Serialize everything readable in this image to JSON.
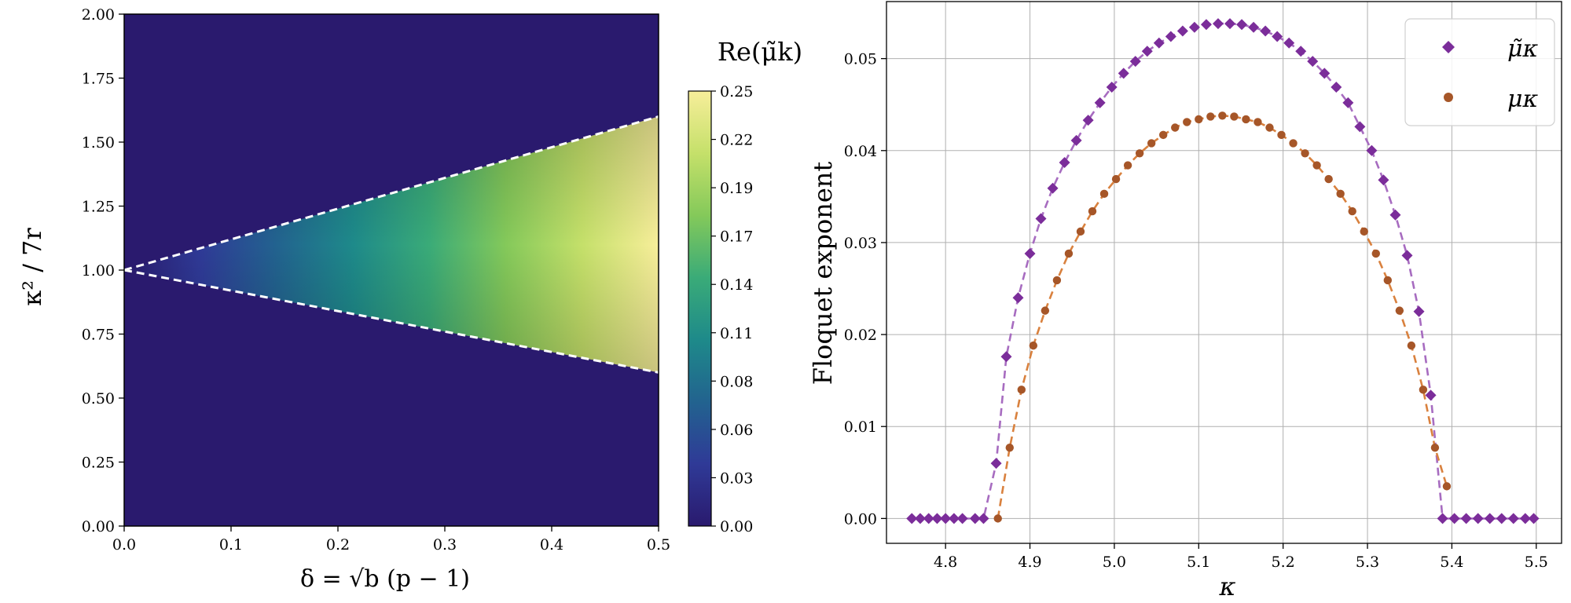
{
  "chart_data": [
    {
      "type": "heatmap",
      "title": "",
      "xlabel": "δ = √b (p − 1)",
      "ylabel": "κ² / 7r",
      "xlim": [
        0.0,
        0.5
      ],
      "ylim": [
        0.0,
        2.0
      ],
      "x_ticks": [
        "0.0",
        "0.1",
        "0.2",
        "0.3",
        "0.4",
        "0.5"
      ],
      "y_ticks": [
        "0.00",
        "0.25",
        "0.50",
        "0.75",
        "1.00",
        "1.25",
        "1.50",
        "1.75",
        "2.00"
      ],
      "boundary": {
        "description": "unstable tongue bounded by white dashed lines",
        "apex": [
          0.0,
          1.0
        ],
        "upper_at_xmax": 1.6,
        "lower_at_xmax": 0.6
      },
      "colorbar": {
        "label": "Re(μ̃k)",
        "range": [
          0.0,
          0.25
        ],
        "ticks": [
          "0.00",
          "0.03",
          "0.06",
          "0.08",
          "0.11",
          "0.14",
          "0.17",
          "0.19",
          "0.22",
          "0.25"
        ],
        "colors": [
          "#2a1a6e",
          "#2f3a97",
          "#22638f",
          "#1e8a8a",
          "#3aab78",
          "#84c95a",
          "#c5e06a",
          "#f7ee9a"
        ]
      },
      "background_color": "#2a1a6e"
    },
    {
      "type": "scatter",
      "xlabel": "κ",
      "ylabel": "Floquet exponent",
      "xlim": [
        4.73,
        5.53
      ],
      "ylim": [
        -0.0027,
        0.0562
      ],
      "x_ticks": [
        "4.8",
        "4.9",
        "5.0",
        "5.1",
        "5.2",
        "5.3",
        "5.4",
        "5.5"
      ],
      "y_ticks": [
        "0.00",
        "0.01",
        "0.02",
        "0.03",
        "0.04",
        "0.05"
      ],
      "grid": true,
      "legend": "top-right",
      "series": [
        {
          "name": "μ̃κ",
          "marker": "diamond",
          "color": "#7b2d9a",
          "fit_color": "#a76cc0",
          "x": [
            4.76,
            4.77,
            4.78,
            4.79,
            4.8,
            4.81,
            4.82,
            4.835,
            4.845,
            4.86,
            4.872,
            4.886,
            4.9,
            4.913,
            4.927,
            4.941,
            4.955,
            4.969,
            4.983,
            4.997,
            5.011,
            5.025,
            5.039,
            5.053,
            5.067,
            5.081,
            5.095,
            5.109,
            5.123,
            5.137,
            5.151,
            5.165,
            5.179,
            5.193,
            5.207,
            5.221,
            5.235,
            5.249,
            5.263,
            5.277,
            5.291,
            5.305,
            5.319,
            5.333,
            5.347,
            5.361,
            5.375,
            5.389,
            5.403,
            5.417,
            5.431,
            5.445,
            5.459,
            5.473,
            5.487,
            5.497
          ],
          "y": [
            0,
            0,
            0,
            0,
            0,
            0,
            0,
            0,
            0,
            0.006,
            0.0176,
            0.024,
            0.0288,
            0.0326,
            0.0359,
            0.0387,
            0.0411,
            0.0433,
            0.0452,
            0.0469,
            0.0484,
            0.0497,
            0.0508,
            0.0517,
            0.0524,
            0.053,
            0.0534,
            0.0537,
            0.0538,
            0.0538,
            0.0537,
            0.0534,
            0.053,
            0.0524,
            0.0517,
            0.0508,
            0.0497,
            0.0484,
            0.0469,
            0.0452,
            0.0426,
            0.04,
            0.0368,
            0.033,
            0.0286,
            0.0225,
            0.0134,
            0,
            0,
            0,
            0,
            0,
            0,
            0,
            0,
            0
          ]
        },
        {
          "name": "μκ",
          "marker": "circle",
          "color": "#a65628",
          "fit_color": "#d9813e",
          "x": [
            4.862,
            4.876,
            4.89,
            4.904,
            4.918,
            4.932,
            4.946,
            4.96,
            4.974,
            4.988,
            5.002,
            5.016,
            5.03,
            5.044,
            5.058,
            5.072,
            5.086,
            5.1,
            5.114,
            5.128,
            5.142,
            5.156,
            5.17,
            5.184,
            5.198,
            5.212,
            5.226,
            5.24,
            5.254,
            5.268,
            5.282,
            5.296,
            5.31,
            5.324,
            5.338,
            5.352,
            5.366,
            5.38,
            5.394
          ],
          "y": [
            0,
            0.0077,
            0.014,
            0.0188,
            0.0226,
            0.0259,
            0.0288,
            0.0312,
            0.0334,
            0.0353,
            0.0369,
            0.0384,
            0.0397,
            0.0408,
            0.0417,
            0.0425,
            0.0431,
            0.0434,
            0.0437,
            0.0438,
            0.0437,
            0.0434,
            0.0431,
            0.0425,
            0.0417,
            0.0408,
            0.0397,
            0.0384,
            0.0369,
            0.0353,
            0.0334,
            0.0312,
            0.0288,
            0.0259,
            0.0226,
            0.0188,
            0.014,
            0.0077,
            0.0035
          ]
        }
      ]
    }
  ]
}
